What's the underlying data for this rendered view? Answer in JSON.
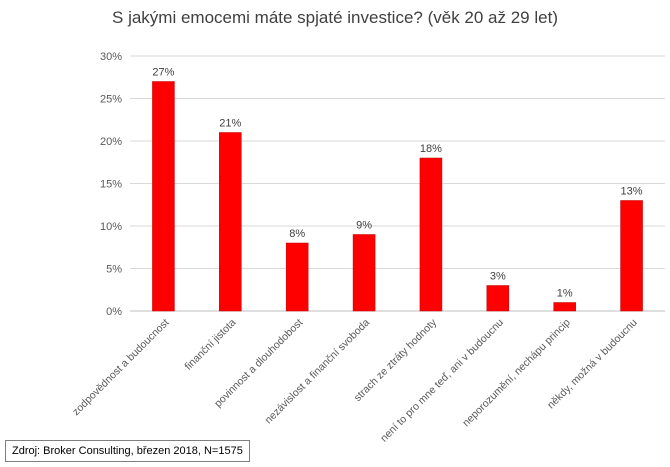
{
  "chart_data": {
    "type": "bar",
    "title": "S jakými emocemi máte spjaté investice? (věk 20 až 29 let)",
    "categories": [
      "zodpovědnost a budoucnost",
      "finanční jistota",
      "povinnost a dlouhodobost",
      "nezávislost a finanční svoboda",
      "strach ze ztráty hodnoty",
      "není to pro mne teď, ani v budoucnu",
      "neporozumění, nechápu princip",
      "někdy, možná v budoucnu"
    ],
    "values": [
      27,
      21,
      8,
      9,
      18,
      3,
      1,
      13
    ],
    "data_labels": [
      "27%",
      "21%",
      "8%",
      "9%",
      "18%",
      "3%",
      "1%",
      "13%"
    ],
    "ylim": [
      0,
      30
    ],
    "yticks": [
      0,
      5,
      10,
      15,
      20,
      25,
      30
    ],
    "ytick_labels": [
      "0%",
      "5%",
      "10%",
      "15%",
      "20%",
      "25%",
      "30%"
    ],
    "grid": true,
    "bar_color": "#ff0000",
    "bar_edge_color": "#c00000"
  },
  "source_note": "Zdroj: Broker Consulting, březen 2018, N=1575"
}
